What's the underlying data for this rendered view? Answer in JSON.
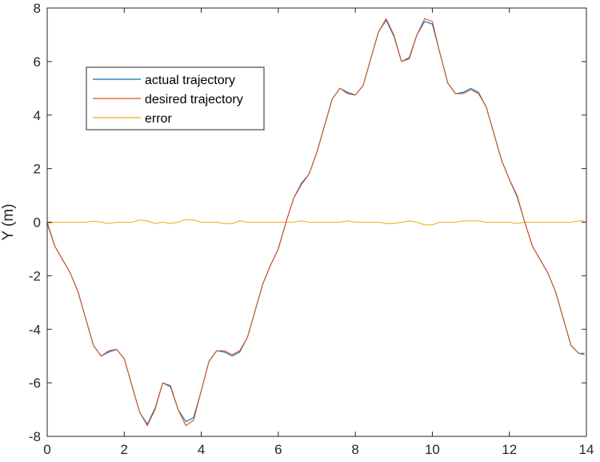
{
  "chart_data": {
    "type": "line",
    "title": "",
    "xlabel": "",
    "ylabel": "Y (m)",
    "xlim": [
      0,
      14
    ],
    "ylim": [
      -8,
      8
    ],
    "xticks": [
      0,
      2,
      4,
      6,
      8,
      10,
      12,
      14
    ],
    "yticks": [
      -8,
      -6,
      -4,
      -2,
      0,
      2,
      4,
      6,
      8
    ],
    "xtick_labels": [
      "0",
      "2",
      "4",
      "6",
      "8",
      "10",
      "12",
      "14"
    ],
    "ytick_labels": [
      "-8",
      "-6",
      "-4",
      "-2",
      "0",
      "2",
      "4",
      "6",
      "8"
    ],
    "grid": false,
    "legend_position": "top-left",
    "x": [
      0,
      0.2,
      0.4,
      0.6,
      0.8,
      1.0,
      1.2,
      1.4,
      1.6,
      1.8,
      2.0,
      2.2,
      2.4,
      2.6,
      2.8,
      3.0,
      3.2,
      3.4,
      3.6,
      3.8,
      4.0,
      4.2,
      4.4,
      4.6,
      4.8,
      5.0,
      5.2,
      5.4,
      5.6,
      5.8,
      6.0,
      6.2,
      6.4,
      6.6,
      6.8,
      7.0,
      7.2,
      7.4,
      7.6,
      7.8,
      8.0,
      8.2,
      8.4,
      8.6,
      8.8,
      9.0,
      9.2,
      9.4,
      9.6,
      9.8,
      10.0,
      10.2,
      10.4,
      10.6,
      10.8,
      11.0,
      11.2,
      11.4,
      11.6,
      11.8,
      12.0,
      12.2,
      12.4,
      12.6,
      12.8,
      13.0,
      13.2,
      13.4,
      13.6,
      13.8,
      13.95
    ],
    "series": [
      {
        "name": "actual trajectory",
        "color": "#0072BD",
        "values": [
          -0.05,
          -0.9,
          -1.4,
          -1.9,
          -2.6,
          -3.6,
          -4.6,
          -5.0,
          -4.85,
          -4.75,
          -5.1,
          -6.1,
          -7.1,
          -7.55,
          -6.95,
          -6.0,
          -6.15,
          -7.0,
          -7.45,
          -7.3,
          -6.3,
          -5.2,
          -4.8,
          -4.85,
          -5.0,
          -4.85,
          -4.3,
          -3.3,
          -2.3,
          -1.6,
          -1.0,
          0.0,
          0.9,
          1.45,
          1.8,
          2.6,
          3.6,
          4.6,
          5.0,
          4.85,
          4.75,
          5.1,
          6.1,
          7.1,
          7.55,
          6.95,
          6.0,
          6.15,
          7.0,
          7.5,
          7.4,
          6.3,
          5.2,
          4.8,
          4.85,
          5.0,
          4.85,
          4.3,
          3.3,
          2.3,
          1.6,
          0.95,
          0.0,
          -0.9,
          -1.4,
          -1.9,
          -2.6,
          -3.6,
          -4.6,
          -4.9,
          -4.9
        ]
      },
      {
        "name": "desired trajectory",
        "color": "#D95319",
        "values": [
          0.0,
          -0.9,
          -1.4,
          -1.9,
          -2.6,
          -3.6,
          -4.6,
          -5.0,
          -4.8,
          -4.75,
          -5.1,
          -6.1,
          -7.1,
          -7.6,
          -7.0,
          -6.0,
          -6.1,
          -7.0,
          -7.6,
          -7.4,
          -6.3,
          -5.2,
          -4.8,
          -4.8,
          -4.95,
          -4.8,
          -4.3,
          -3.3,
          -2.3,
          -1.6,
          -1.0,
          0.0,
          0.9,
          1.4,
          1.8,
          2.6,
          3.6,
          4.6,
          5.0,
          4.8,
          4.75,
          5.1,
          6.1,
          7.1,
          7.6,
          7.0,
          6.0,
          6.1,
          7.0,
          7.6,
          7.5,
          6.3,
          5.2,
          4.8,
          4.8,
          4.95,
          4.8,
          4.3,
          3.3,
          2.3,
          1.6,
          1.0,
          0.0,
          -0.9,
          -1.4,
          -1.9,
          -2.6,
          -3.6,
          -4.6,
          -4.9,
          -4.95
        ]
      },
      {
        "name": "error",
        "color": "#EDB120",
        "values": [
          -0.05,
          0.0,
          0.0,
          0.0,
          0.0,
          0.0,
          0.04,
          0.0,
          -0.05,
          0.0,
          0.0,
          0.0,
          0.08,
          0.05,
          -0.05,
          0.0,
          -0.05,
          0.0,
          0.1,
          0.08,
          0.0,
          0.0,
          0.0,
          -0.05,
          -0.05,
          0.05,
          0.0,
          0.0,
          0.0,
          0.0,
          0.0,
          0.0,
          0.0,
          0.05,
          0.0,
          0.0,
          0.0,
          0.0,
          0.0,
          0.05,
          0.0,
          0.0,
          0.0,
          0.0,
          -0.05,
          -0.05,
          0.0,
          0.05,
          0.0,
          -0.1,
          -0.1,
          0.0,
          0.0,
          0.0,
          0.05,
          0.05,
          0.05,
          0.0,
          0.0,
          0.0,
          0.0,
          -0.05,
          0.0,
          0.0,
          0.0,
          0.0,
          0.0,
          0.0,
          0.0,
          0.05,
          0.05
        ]
      }
    ]
  }
}
